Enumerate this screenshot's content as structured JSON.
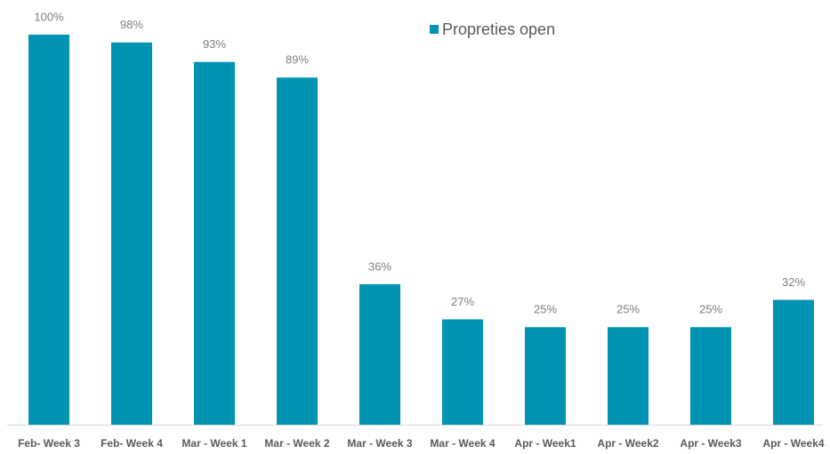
{
  "chart_data": {
    "type": "bar",
    "categories": [
      "Feb- Week 3",
      "Feb- Week 4",
      "Mar - Week 1",
      "Mar - Week 2",
      "Mar - Week 3",
      "Mar - Week 4",
      "Apr - Week1",
      "Apr - Week2",
      "Apr - Week3",
      "Apr - Week4"
    ],
    "series": [
      {
        "name": "Propreties open",
        "color": "#0093b2",
        "values": [
          100,
          98,
          93,
          89,
          36,
          27,
          25,
          25,
          25,
          32
        ],
        "value_labels": [
          "100%",
          "98%",
          "93%",
          "89%",
          "36%",
          "27%",
          "25%",
          "25%",
          "25%",
          "32%"
        ]
      }
    ],
    "legend": "top"
  }
}
